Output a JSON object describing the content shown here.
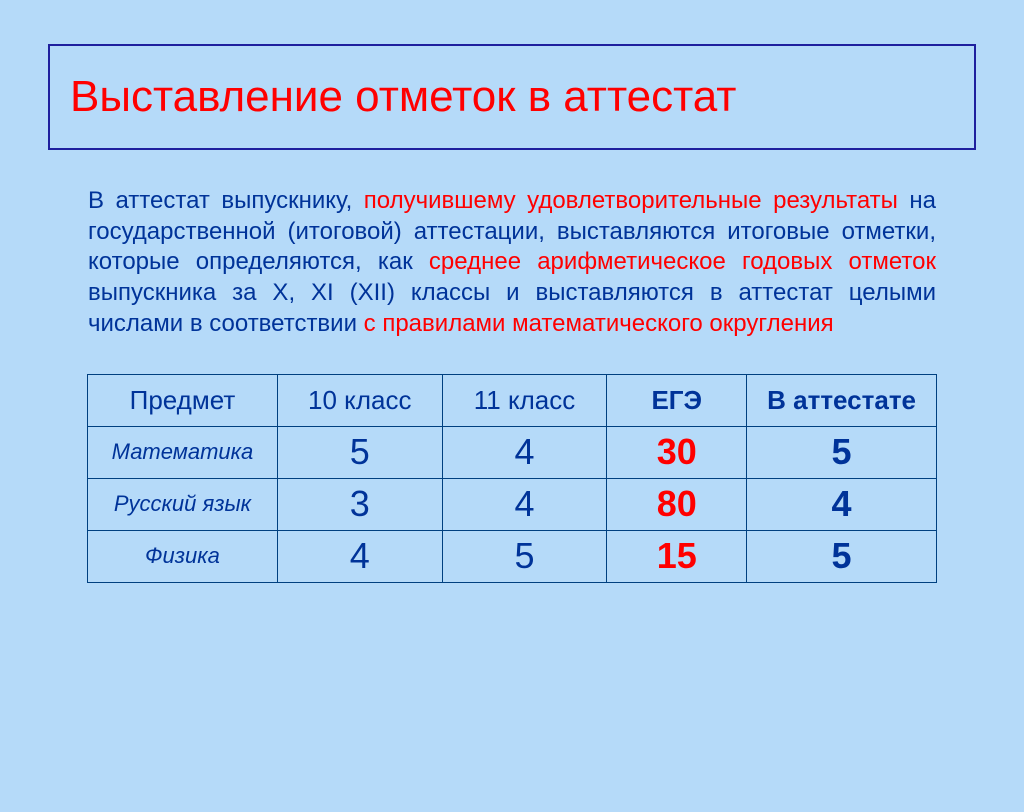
{
  "title": "Выставление отметок в аттестат",
  "paragraph": {
    "t1": "В аттестат выпускнику",
    "t2": ", ",
    "t3": "получившему удовлетворительные результаты",
    "t4": " на государственной (итоговой) аттестации, выставляются итоговые отметки, которые определяются, как ",
    "t5": "среднее арифметическое годовых отметок",
    "t6": " выпускника за X, XI (XII) классы и выставляются в аттестат целыми числами в соответствии ",
    "t7": "с правилами математического округления"
  },
  "table": {
    "headers": {
      "subject": "Предмет",
      "g10": "10 класс",
      "g11": "11 класс",
      "ege": "ЕГЭ",
      "att": "В аттестате"
    },
    "rows": [
      {
        "subject": "Математика",
        "g10": "5",
        "g11": "4",
        "ege": "30",
        "att": "5"
      },
      {
        "subject": "Русский язык",
        "g10": "3",
        "g11": "4",
        "ege": "80",
        "att": "4"
      },
      {
        "subject": "Физика",
        "g10": "4",
        "g11": "5",
        "ege": "15",
        "att": "5"
      }
    ]
  },
  "colors": {
    "background": "#b5daf9",
    "title_border": "#1f1f9e",
    "title_text": "#ff0000",
    "body_text": "#003399",
    "highlight_text": "#ff0000",
    "table_border": "#004080"
  },
  "fontsizes": {
    "title": 44,
    "paragraph": 24,
    "table_header": 26,
    "table_subject": 22,
    "table_value": 36
  }
}
